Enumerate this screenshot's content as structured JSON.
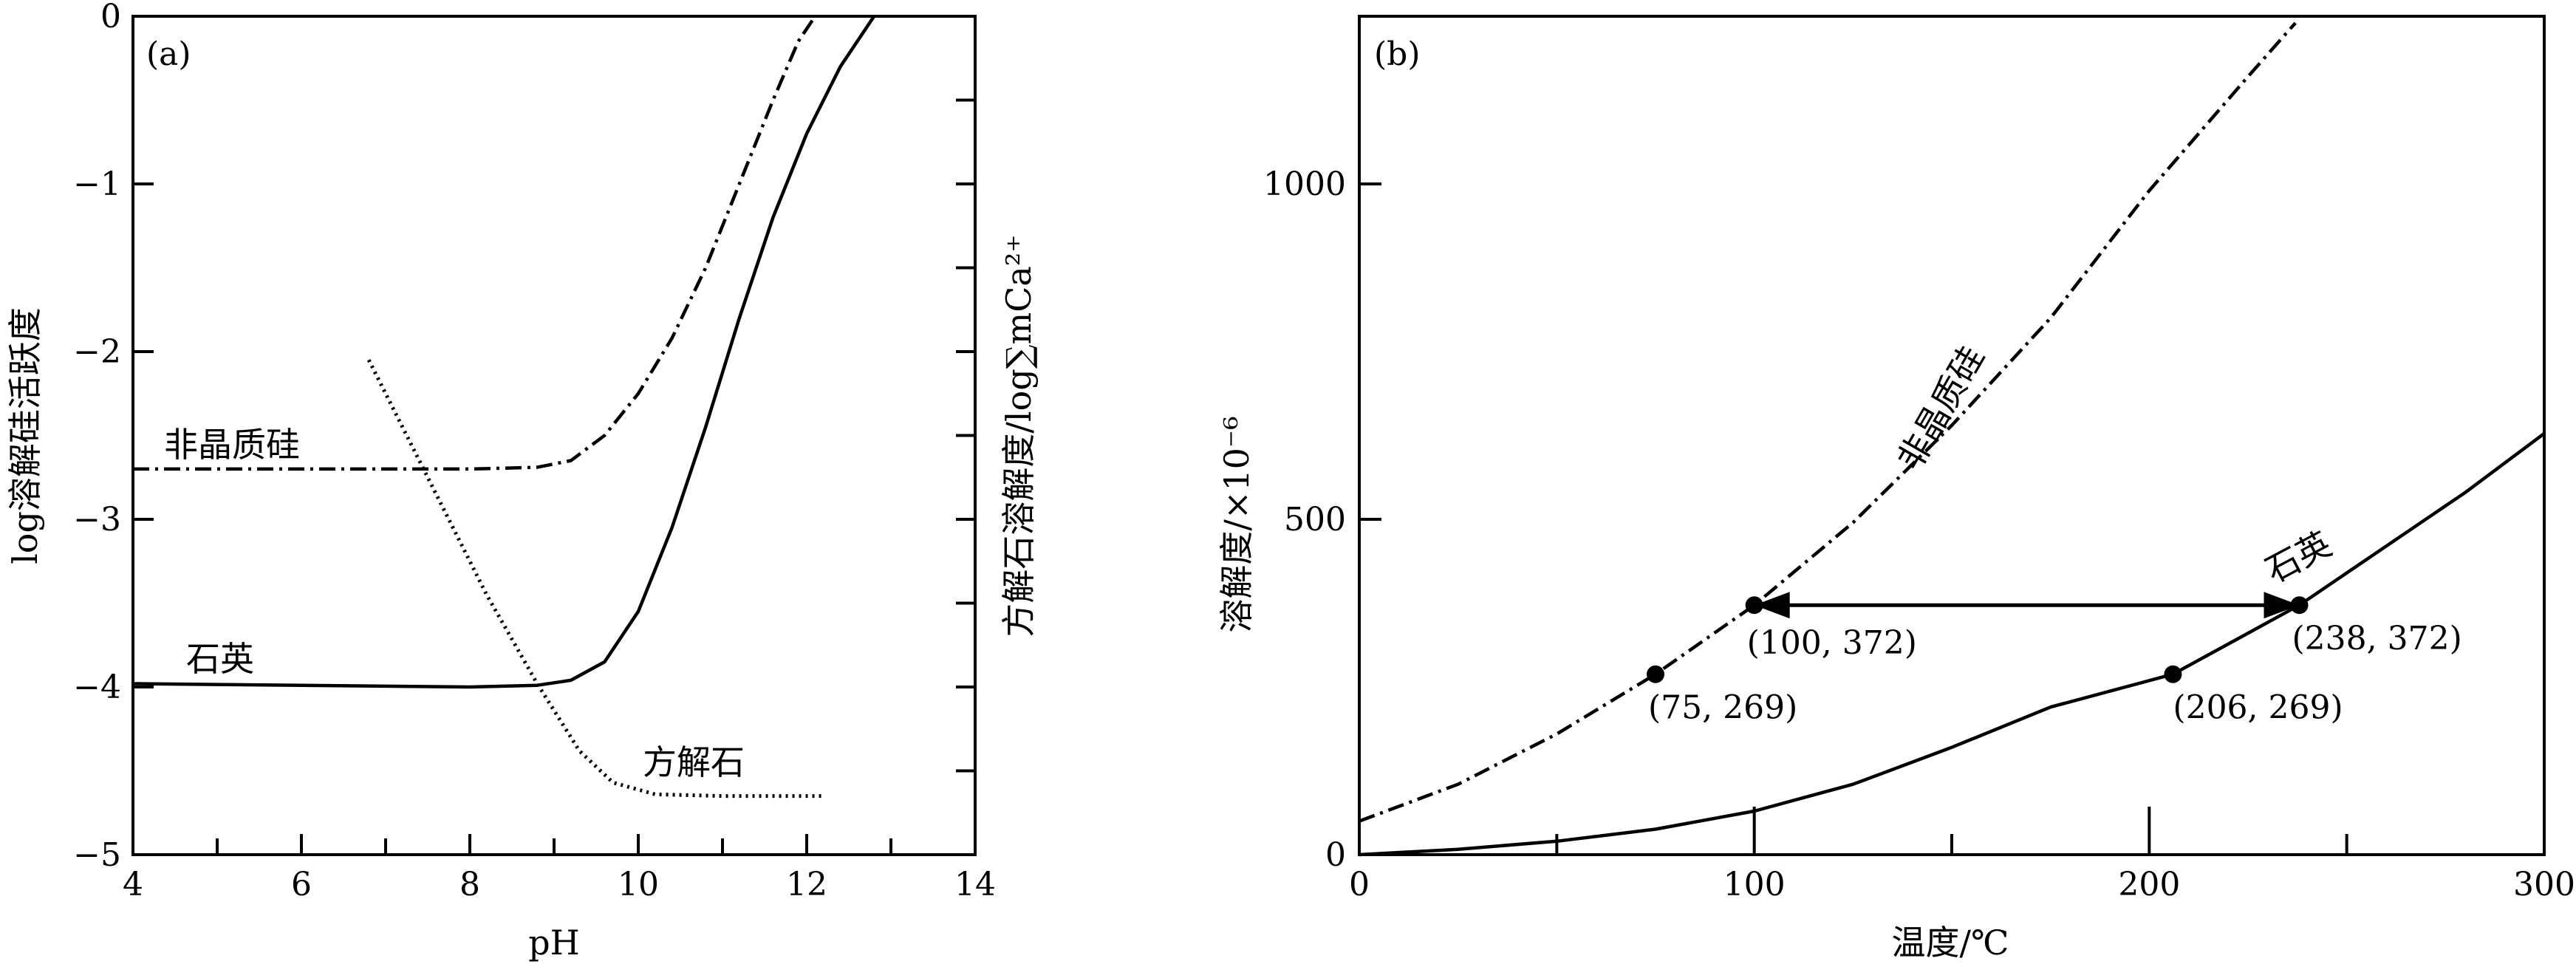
{
  "chart_data": [
    {
      "panel": "(a)",
      "type": "line",
      "xlabel": "pH",
      "ylabel": "log溶解硅活跃度",
      "y2label": "方解石溶解度/log∑mCa²⁺",
      "xlim": [
        4,
        14
      ],
      "ylim": [
        -5,
        0
      ],
      "xticks": [
        "4",
        "6",
        "8",
        "10",
        "12",
        "14"
      ],
      "yticks": [
        "0",
        "−1",
        "−2",
        "−3",
        "−4",
        "−5"
      ],
      "series": [
        {
          "name": "非晶质硅",
          "style": "dash-dot",
          "points": [
            [
              4.0,
              -2.7
            ],
            [
              6.0,
              -2.7
            ],
            [
              8.0,
              -2.7
            ],
            [
              8.8,
              -2.69
            ],
            [
              9.2,
              -2.65
            ],
            [
              9.6,
              -2.5
            ],
            [
              10.0,
              -2.25
            ],
            [
              10.4,
              -1.92
            ],
            [
              10.8,
              -1.5
            ],
            [
              11.2,
              -1.0
            ],
            [
              11.6,
              -0.5
            ],
            [
              11.9,
              -0.15
            ],
            [
              12.1,
              0.0
            ]
          ]
        },
        {
          "name": "石英",
          "style": "solid",
          "points": [
            [
              4.0,
              -3.98
            ],
            [
              6.0,
              -3.99
            ],
            [
              8.0,
              -4.0
            ],
            [
              8.8,
              -3.99
            ],
            [
              9.2,
              -3.96
            ],
            [
              9.6,
              -3.85
            ],
            [
              10.0,
              -3.55
            ],
            [
              10.4,
              -3.05
            ],
            [
              10.8,
              -2.45
            ],
            [
              11.2,
              -1.8
            ],
            [
              11.6,
              -1.2
            ],
            [
              12.0,
              -0.7
            ],
            [
              12.4,
              -0.3
            ],
            [
              12.8,
              0.0
            ]
          ]
        },
        {
          "name": "方解石",
          "style": "dotted",
          "points": [
            [
              6.8,
              -2.05
            ],
            [
              7.5,
              -2.75
            ],
            [
              8.2,
              -3.45
            ],
            [
              8.8,
              -3.98
            ],
            [
              9.3,
              -4.38
            ],
            [
              9.7,
              -4.57
            ],
            [
              10.2,
              -4.64
            ],
            [
              11.0,
              -4.65
            ],
            [
              12.2,
              -4.65
            ]
          ]
        }
      ],
      "annotations": [
        "非晶质硅",
        "石英",
        "方解石"
      ]
    },
    {
      "panel": "(b)",
      "type": "line",
      "xlabel": "温度/℃",
      "ylabel": "溶解度/×10⁻⁶",
      "xlim": [
        0,
        300
      ],
      "ylim": [
        0,
        1250
      ],
      "xticks": [
        "0",
        "100",
        "200",
        "300"
      ],
      "yticks": [
        "0",
        "500",
        "1000"
      ],
      "series": [
        {
          "name": "非晶质硅",
          "style": "dash-dot",
          "points": [
            [
              0,
              50
            ],
            [
              25,
              105
            ],
            [
              50,
              180
            ],
            [
              75,
              269
            ],
            [
              100,
              372
            ],
            [
              125,
              495
            ],
            [
              150,
              640
            ],
            [
              175,
              800
            ],
            [
              200,
              990
            ],
            [
              225,
              1160
            ],
            [
              237,
              1240
            ]
          ]
        },
        {
          "name": "石英",
          "style": "solid",
          "points": [
            [
              0,
              0
            ],
            [
              25,
              8
            ],
            [
              50,
              20
            ],
            [
              75,
              38
            ],
            [
              100,
              65
            ],
            [
              125,
              105
            ],
            [
              150,
              160
            ],
            [
              175,
              220
            ],
            [
              206,
              269
            ],
            [
              238,
              372
            ],
            [
              260,
              460
            ],
            [
              280,
              540
            ],
            [
              300,
              628
            ]
          ]
        }
      ],
      "marked_points": [
        {
          "x": 75,
          "y": 269,
          "label": "(75, 269)"
        },
        {
          "x": 100,
          "y": 372,
          "label": "(100, 372)"
        },
        {
          "x": 206,
          "y": 269,
          "label": "(206, 269)"
        },
        {
          "x": 238,
          "y": 372,
          "label": "(238, 372)"
        }
      ],
      "arrow": {
        "from": [
          100,
          372
        ],
        "to": [
          238,
          372
        ],
        "double_headed": true
      },
      "annotations": [
        "非晶质硅",
        "石英"
      ]
    }
  ]
}
